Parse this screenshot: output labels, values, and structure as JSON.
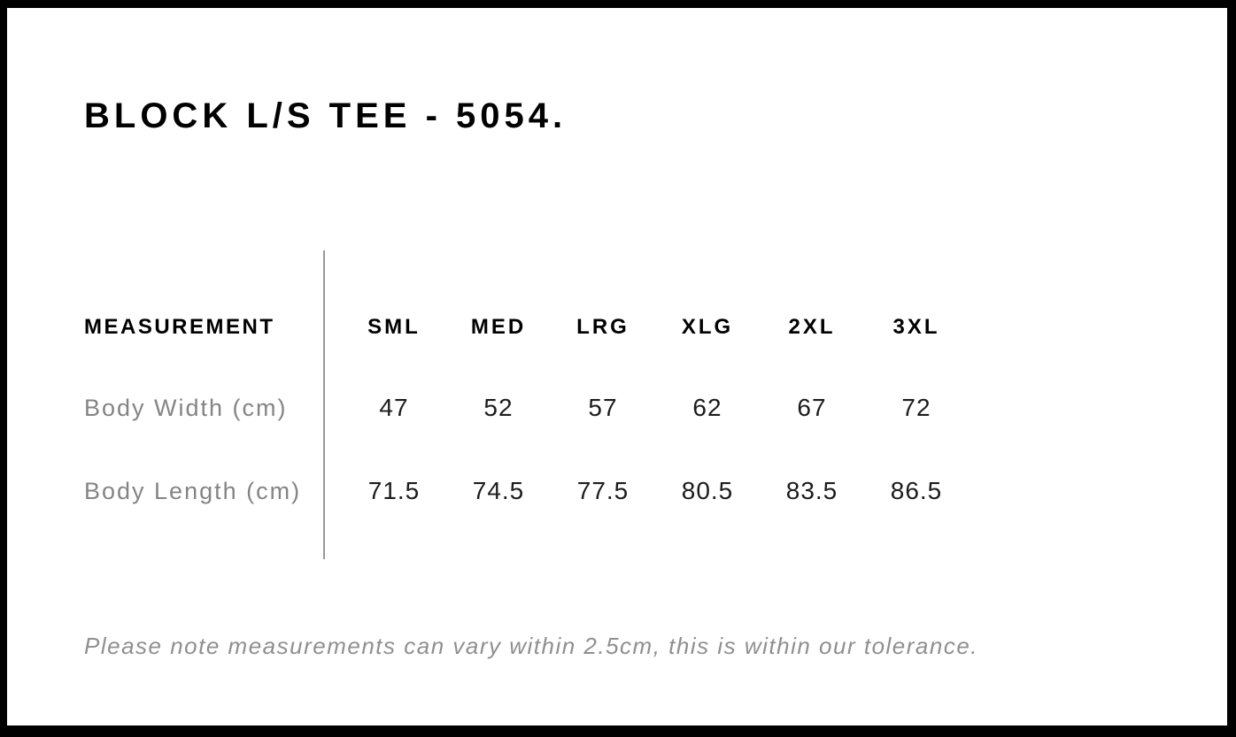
{
  "page": {
    "title": "BLOCK L/S TEE - 5054."
  },
  "size_chart": {
    "measurement_header": "MEASUREMENT",
    "sizes": [
      "SML",
      "MED",
      "LRG",
      "XLG",
      "2XL",
      "3XL"
    ],
    "rows": [
      {
        "label": "Body Width (cm)",
        "values": [
          "47",
          "52",
          "57",
          "62",
          "67",
          "72"
        ]
      },
      {
        "label": "Body Length (cm)",
        "values": [
          "71.5",
          "74.5",
          "77.5",
          "80.5",
          "83.5",
          "86.5"
        ]
      }
    ],
    "note": "Please note measurements can vary within 2.5cm, this is within our tolerance."
  },
  "colors": {
    "frame": "#000000",
    "page_background": "#ffffff",
    "heading_text": "#000000",
    "row_label_text": "#848484",
    "value_text": "#1c1c1c",
    "note_text": "#8f8f8f",
    "divider": "#999999"
  }
}
